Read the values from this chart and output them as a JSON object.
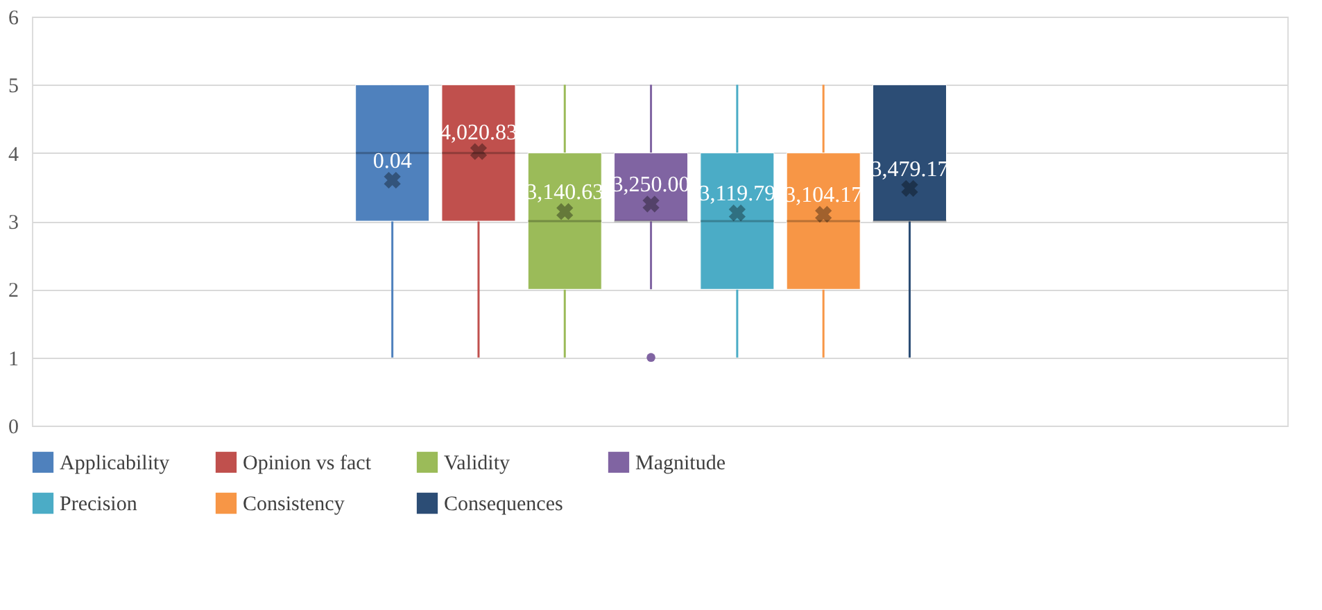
{
  "chart_data": {
    "type": "box",
    "categories": [
      null
    ],
    "ylim": [
      0,
      6
    ],
    "yticks": [
      0,
      1,
      2,
      3,
      4,
      5,
      6
    ],
    "grid": "y",
    "legend": "bottom",
    "tick_labels": "y",
    "series": [
      {
        "name": "Applicability",
        "color": "#4f81bd",
        "boxes": [
          {
            "low": 1,
            "q1": 3,
            "median": 4,
            "q3": 5,
            "high": 5,
            "mean": 3.6
          }
        ]
      },
      {
        "name": "Opinion vs fact",
        "color": "#c0504d",
        "boxes": [
          {
            "low": 1,
            "q1": 3,
            "median": 4,
            "q3": 5,
            "high": 5,
            "mean": 4.02
          }
        ]
      },
      {
        "name": "Validity",
        "color": "#9bbb59",
        "boxes": [
          {
            "low": 1,
            "q1": 2,
            "median": 3,
            "q3": 4,
            "high": 5,
            "mean": 3.14
          }
        ]
      },
      {
        "name": "Magnitude",
        "color": "#8064a2",
        "boxes": [
          {
            "low": 2,
            "q1": 3,
            "median": 3,
            "q3": 4,
            "high": 5,
            "mean": 3.25,
            "outliers": [
              1
            ]
          }
        ]
      },
      {
        "name": "Precision",
        "color": "#4bacc6",
        "boxes": [
          {
            "low": 1,
            "q1": 2,
            "median": 3,
            "q3": 4,
            "high": 5,
            "mean": 3.12
          }
        ]
      },
      {
        "name": "Consistency",
        "color": "#f79646",
        "boxes": [
          {
            "low": 1,
            "q1": 2,
            "median": 3,
            "q3": 4,
            "high": 5,
            "mean": 3.1
          }
        ]
      },
      {
        "name": "Consequences",
        "color": "#2c4d75",
        "boxes": [
          {
            "low": 1,
            "q1": 3,
            "median": 3,
            "q3": 5,
            "high": 5,
            "mean": 3.48
          }
        ]
      }
    ],
    "annotations": [
      {
        "text": "0.04",
        "y": 3.6
      },
      {
        "text": "4,020.83",
        "y": 4.02
      },
      {
        "text": "3,140.63",
        "y": 3.14
      },
      {
        "text": "3,250.00",
        "y": 3.25
      },
      {
        "text": "3,119.79",
        "y": 3.12
      },
      {
        "text": "3,104.17",
        "y": 3.1
      },
      {
        "text": "3,479.17",
        "y": 3.48
      }
    ]
  }
}
